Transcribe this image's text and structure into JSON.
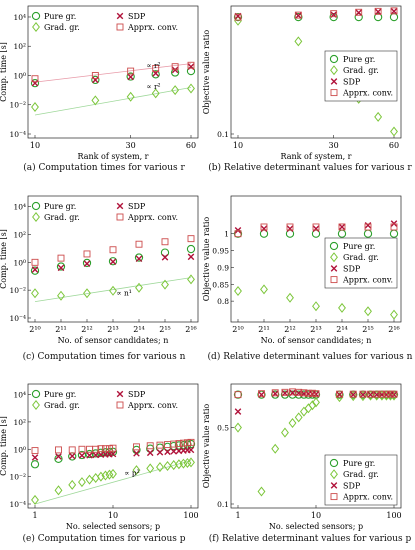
{
  "captions": {
    "a": "(a) Computation times for various r",
    "b": "(b) Relative determinant values for various r",
    "c": "(c) Computation times for various n",
    "d": "(d) Relative determinant values for various n",
    "e": "(e) Computation times for various p",
    "f": "(f) Relative determinant values for various p"
  },
  "legend": {
    "pure": "Pure gr.",
    "grad": "Grad. gr.",
    "sdp": "SDP",
    "appr": "Apprx. conv."
  },
  "colors": {
    "pure": "#2ca02c",
    "grad": "#7cc63a",
    "sdp": "#b0123a",
    "appr": "#cc4b4b",
    "fit_red": "#e89aa8",
    "fit_green": "#9fd89a"
  },
  "chart_data": [
    {
      "id": "a",
      "type": "scatter",
      "xlabel": "Rank of system, r",
      "ylabel": "Comp. time [s]",
      "xscale": "log",
      "yscale": "log",
      "xlim": [
        10,
        60
      ],
      "ylim": [
        0.0001,
        30000
      ],
      "xticks": [
        10,
        30,
        60
      ],
      "xticklabels": [
        "10",
        "30",
        "60"
      ],
      "yticks": [
        0.0001,
        0.01,
        1,
        100,
        10000
      ],
      "yticklabels": [
        "10⁻⁴",
        "10⁻²",
        "10⁰",
        "10²",
        "10⁴"
      ],
      "x": [
        10,
        20,
        30,
        40,
        50,
        60
      ],
      "series": [
        {
          "name": "Pure gr.",
          "key": "pure",
          "values": [
            0.3,
            0.5,
            0.85,
            1.2,
            1.6,
            2.0
          ]
        },
        {
          "name": "Grad. gr.",
          "key": "grad",
          "values": [
            0.007,
            0.02,
            0.035,
            0.06,
            0.1,
            0.13
          ]
        },
        {
          "name": "SDP",
          "key": "sdp",
          "values": [
            0.3,
            0.5,
            0.8,
            1.4,
            2.4,
            4.0
          ]
        },
        {
          "name": "Apprx. conv.",
          "key": "appr",
          "values": [
            0.6,
            1.0,
            2.0,
            3.0,
            4.0,
            5.0
          ]
        }
      ],
      "fits": [
        {
          "key": "fit_red",
          "x": [
            10,
            60
          ],
          "y": [
            0.35,
            6.5
          ]
        },
        {
          "key": "fit_green",
          "x": [
            10,
            60
          ],
          "y": [
            0.002,
            0.15
          ]
        }
      ],
      "annotations": [
        {
          "text": "∝ r²",
          "x": 36,
          "y": 3.2
        },
        {
          "text": "∝ r²",
          "x": 36,
          "y": 0.12
        }
      ],
      "legend_pos": "top"
    },
    {
      "id": "b",
      "type": "scatter",
      "xlabel": "Rank of system, r",
      "ylabel": "Objective value ratio",
      "xscale": "log",
      "yscale": "log",
      "xlim": [
        10,
        60
      ],
      "ylim": [
        0.1,
        1.15
      ],
      "xticks": [
        10,
        30,
        60
      ],
      "xticklabels": [
        "10",
        "30",
        "60"
      ],
      "yticks": [
        0.1
      ],
      "yticklabels": [
        "0.1"
      ],
      "x": [
        10,
        20,
        30,
        40,
        50,
        60
      ],
      "series": [
        {
          "name": "Pure gr.",
          "key": "pure",
          "values": [
            1.0,
            1.0,
            1.0,
            1.0,
            1.0,
            1.0
          ]
        },
        {
          "name": "Grad. gr.",
          "key": "grad",
          "values": [
            0.93,
            0.62,
            0.35,
            0.2,
            0.14,
            0.105
          ]
        },
        {
          "name": "SDP",
          "key": "sdp",
          "values": [
            1.02,
            1.03,
            1.05,
            1.09,
            1.11,
            1.12
          ]
        },
        {
          "name": "Apprx. conv.",
          "key": "appr",
          "values": [
            1.0,
            1.04,
            1.07,
            1.1,
            1.12,
            1.13
          ]
        }
      ],
      "legend_pos": "center-right"
    },
    {
      "id": "c",
      "type": "scatter",
      "xlabel": "No. of sensor candidates; n",
      "ylabel": "Comp. time [s]",
      "xscale": "log2",
      "yscale": "log",
      "xlim": [
        1024,
        65536
      ],
      "ylim": [
        0.0001,
        30000
      ],
      "xticks": [
        1024,
        2048,
        4096,
        8192,
        16384,
        32768,
        65536
      ],
      "xticklabels": [
        "2¹⁰",
        "2¹¹",
        "2¹²",
        "2¹³",
        "2¹⁴",
        "2¹⁵",
        "2¹⁶"
      ],
      "yticks": [
        0.0001,
        0.01,
        1,
        100,
        10000
      ],
      "yticklabels": [
        "10⁻⁴",
        "10⁻²",
        "10⁰",
        "10²",
        "10⁴"
      ],
      "x": [
        1024,
        2048,
        4096,
        8192,
        16384,
        32768,
        65536
      ],
      "series": [
        {
          "name": "Pure gr.",
          "key": "pure",
          "values": [
            0.25,
            0.5,
            0.9,
            1.2,
            2.2,
            5.0,
            9.0
          ]
        },
        {
          "name": "Grad. gr.",
          "key": "grad",
          "values": [
            0.006,
            0.004,
            0.006,
            0.009,
            0.015,
            0.025,
            0.06
          ]
        },
        {
          "name": "SDP",
          "key": "sdp",
          "values": [
            0.3,
            0.4,
            0.8,
            1.1,
            1.8,
            2.3,
            2.5
          ]
        },
        {
          "name": "Apprx. conv.",
          "key": "appr",
          "values": [
            1.0,
            2.0,
            4.0,
            8.0,
            20.0,
            30.0,
            50.0
          ]
        }
      ],
      "fits": [
        {
          "key": "fit_green",
          "x": [
            1024,
            65536
          ],
          "y": [
            0.0015,
            0.08
          ]
        }
      ],
      "annotations": [
        {
          "text": "∝ n¹",
          "x": 9000,
          "y": 0.004
        }
      ],
      "legend_pos": "top"
    },
    {
      "id": "d",
      "type": "scatter",
      "xlabel": "No. of sensor candidates; n",
      "ylabel": "Objective value ratio",
      "xscale": "log2",
      "yscale": "linear",
      "xlim": [
        1024,
        65536
      ],
      "ylim": [
        0.75,
        1.1
      ],
      "xticks": [
        1024,
        2048,
        4096,
        8192,
        16384,
        32768,
        65536
      ],
      "xticklabels": [
        "2¹⁰",
        "2¹¹",
        "2¹²",
        "2¹³",
        "2¹⁴",
        "2¹⁵",
        "2¹⁶"
      ],
      "yticks": [
        0.8,
        0.85,
        0.9,
        0.95,
        1.0
      ],
      "yticklabels": [
        "0.8",
        "0.85",
        "0.9",
        "0.95",
        "1"
      ],
      "x": [
        1024,
        2048,
        4096,
        8192,
        16384,
        32768,
        65536
      ],
      "series": [
        {
          "name": "Pure gr.",
          "key": "pure",
          "values": [
            1.0,
            1.0,
            1.0,
            1.0,
            1.0,
            1.0,
            1.0
          ]
        },
        {
          "name": "Grad. gr.",
          "key": "grad",
          "values": [
            0.83,
            0.835,
            0.81,
            0.785,
            0.78,
            0.77,
            0.76
          ]
        },
        {
          "name": "SDP",
          "key": "sdp",
          "values": [
            1.01,
            1.015,
            1.015,
            1.015,
            1.02,
            1.025,
            1.03
          ]
        },
        {
          "name": "Apprx. conv.",
          "key": "appr",
          "values": [
            1.0,
            1.02,
            1.02,
            1.02,
            1.02,
            1.02,
            1.02
          ]
        }
      ],
      "legend_pos": "center-right"
    },
    {
      "id": "e",
      "type": "scatter",
      "xlabel": "No. selected sensors; p",
      "ylabel": "Comp. time [s]",
      "xscale": "log",
      "yscale": "log",
      "xlim": [
        1,
        100
      ],
      "ylim": [
        0.0001,
        30000
      ],
      "xticks": [
        1,
        10,
        100
      ],
      "xticklabels": [
        "1",
        "10",
        "100"
      ],
      "yticks": [
        0.0001,
        0.01,
        1,
        100,
        10000
      ],
      "yticklabels": [
        "10⁻⁴",
        "10⁻²",
        "10⁰",
        "10²",
        "10⁴"
      ],
      "x": [
        1,
        2,
        3,
        4,
        5,
        6,
        7,
        8,
        9,
        10,
        20,
        30,
        40,
        50,
        60,
        70,
        80,
        90,
        100
      ],
      "series": [
        {
          "name": "Pure gr.",
          "key": "pure",
          "values": [
            0.08,
            0.2,
            0.3,
            0.38,
            0.45,
            0.5,
            0.55,
            0.6,
            0.62,
            0.65,
            0.9,
            1.1,
            1.3,
            1.5,
            1.7,
            1.9,
            2.0,
            2.2,
            2.4
          ]
        },
        {
          "name": "Grad. gr.",
          "key": "grad",
          "values": [
            0.0002,
            0.001,
            0.0025,
            0.004,
            0.006,
            0.008,
            0.01,
            0.012,
            0.014,
            0.016,
            0.03,
            0.04,
            0.05,
            0.06,
            0.07,
            0.08,
            0.09,
            0.1,
            0.11
          ]
        },
        {
          "name": "SDP",
          "key": "sdp",
          "values": [
            0.25,
            0.3,
            0.32,
            0.35,
            0.36,
            0.38,
            0.4,
            0.42,
            0.43,
            0.45,
            0.5,
            0.55,
            0.6,
            0.65,
            0.7,
            0.75,
            0.8,
            0.85,
            0.9
          ]
        },
        {
          "name": "Apprx. conv.",
          "key": "appr",
          "values": [
            0.8,
            0.9,
            0.9,
            1.0,
            1.0,
            1.0,
            1.1,
            1.1,
            1.1,
            1.2,
            1.5,
            1.8,
            2.0,
            2.2,
            2.4,
            2.6,
            2.8,
            3.0,
            3.2
          ]
        }
      ],
      "fits": [
        {
          "key": "fit_green",
          "x": [
            1,
            100
          ],
          "y": [
            0.0001,
            0.15
          ]
        }
      ],
      "annotations": [
        {
          "text": "∝ p²",
          "x": 14,
          "y": 0.012
        }
      ],
      "legend_pos": "top"
    },
    {
      "id": "f",
      "type": "scatter",
      "xlabel": "No. selected sensors; p",
      "ylabel": "Objective value ratio",
      "xscale": "log",
      "yscale": "log",
      "xlim": [
        1,
        100
      ],
      "ylim": [
        0.1,
        1.15
      ],
      "xticks": [
        1,
        10,
        100
      ],
      "xticklabels": [
        "1",
        "10",
        "100"
      ],
      "yticks": [
        0.1,
        0.5
      ],
      "yticklabels": [
        "0.1",
        "0.5"
      ],
      "x": [
        1,
        2,
        3,
        4,
        5,
        6,
        7,
        8,
        9,
        10,
        20,
        30,
        40,
        50,
        60,
        70,
        80,
        90,
        100
      ],
      "series": [
        {
          "name": "Pure gr.",
          "key": "pure",
          "values": [
            1.0,
            1.0,
            1.0,
            1.0,
            1.0,
            1.0,
            1.0,
            1.0,
            1.0,
            1.0,
            1.0,
            1.0,
            1.0,
            1.0,
            1.0,
            1.0,
            1.0,
            1.0,
            1.0
          ]
        },
        {
          "name": "Grad. gr.",
          "key": "grad",
          "values": [
            0.5,
            0.13,
            0.32,
            0.45,
            0.55,
            0.62,
            0.7,
            0.75,
            0.8,
            0.85,
            0.95,
            0.97,
            0.97,
            0.98,
            0.98,
            0.98,
            0.98,
            0.98,
            0.98
          ]
        },
        {
          "name": "SDP",
          "key": "sdp",
          "values": [
            0.7,
            1.0,
            1.02,
            1.03,
            1.04,
            1.03,
            1.02,
            1.02,
            1.01,
            1.01,
            1.0,
            1.0,
            1.0,
            1.0,
            1.0,
            1.0,
            1.0,
            1.0,
            1.0
          ]
        },
        {
          "name": "Apprx. conv.",
          "key": "appr",
          "values": [
            1.0,
            1.02,
            1.04,
            1.05,
            1.06,
            1.05,
            1.04,
            1.03,
            1.03,
            1.02,
            1.01,
            1.01,
            1.01,
            1.01,
            1.01,
            1.01,
            1.01,
            1.01,
            1.01
          ]
        }
      ],
      "legend_pos": "bottom-right"
    }
  ]
}
